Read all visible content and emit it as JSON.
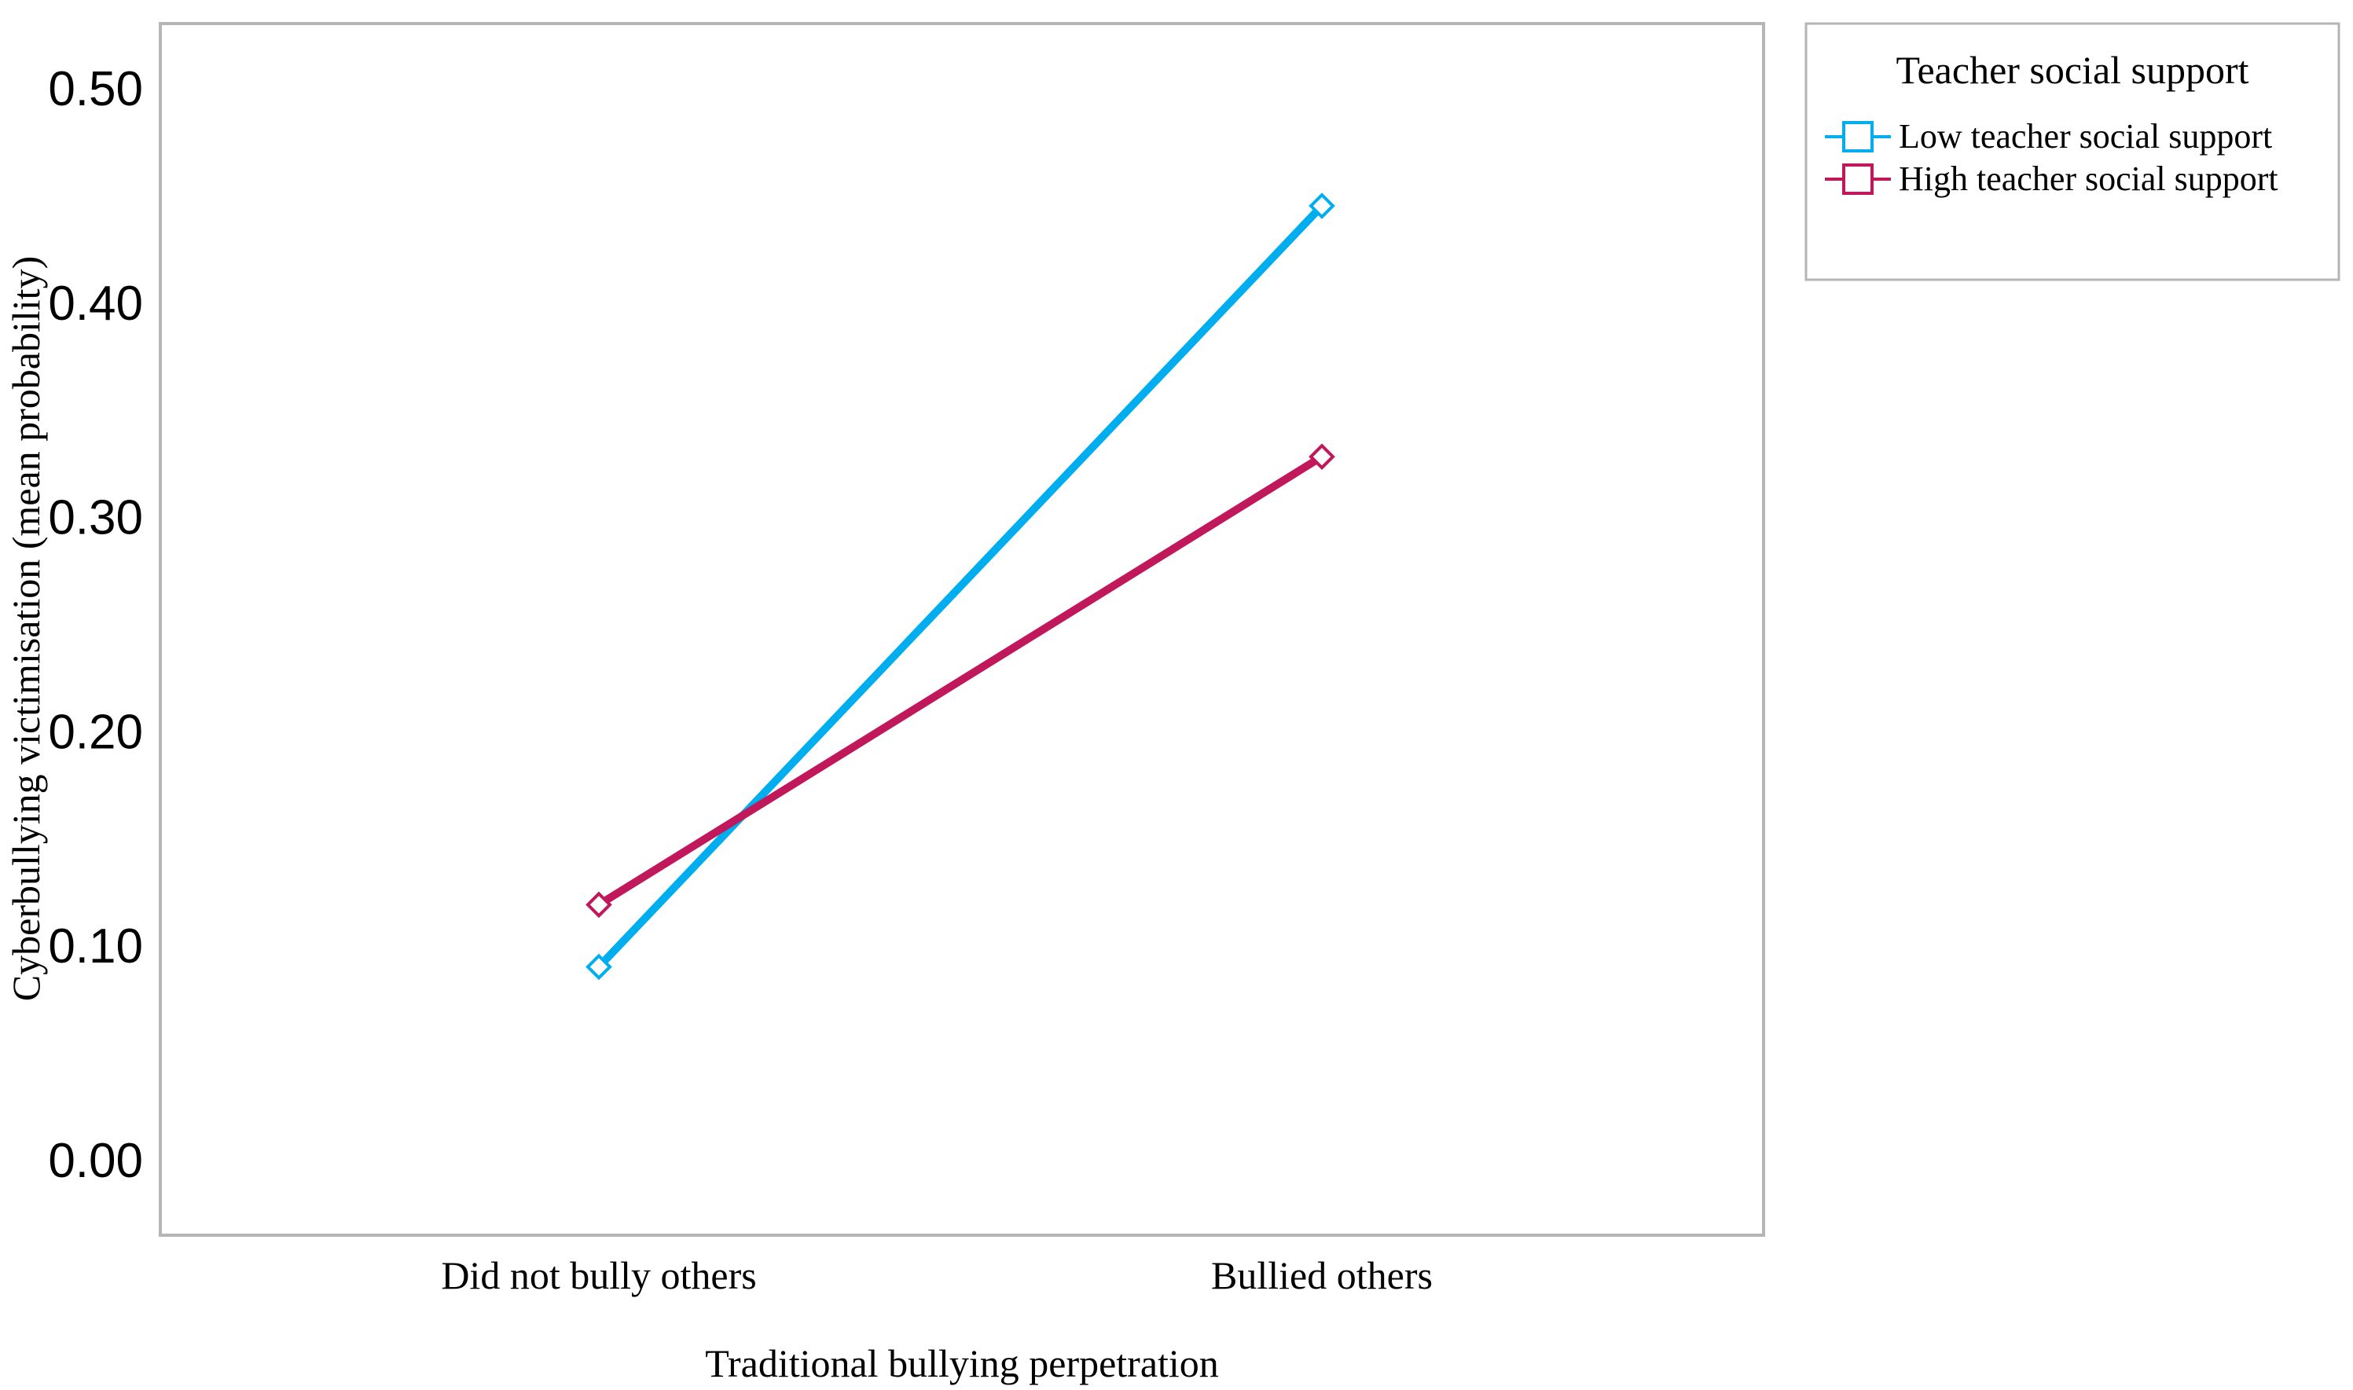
{
  "chart_data": {
    "type": "line",
    "categories": [
      "Did not bully others",
      "Bullied others"
    ],
    "xlabel": "Traditional bullying perpetration",
    "ylabel": "Cyberbullying victimisation (mean probability)",
    "ylim": [
      0,
      0.5
    ],
    "yticks": [
      "0.00",
      "0.10",
      "0.20",
      "0.30",
      "0.40",
      "0.50"
    ],
    "grid": false,
    "legend": {
      "title": "Teacher social support",
      "placement": "outside-right-top"
    },
    "series": [
      {
        "name": "Low teacher social support",
        "color": "#00aef0",
        "marker": "diamond",
        "values": [
          0.09,
          0.445
        ]
      },
      {
        "name": "High teacher social support",
        "color": "#c0185a",
        "marker": "diamond",
        "values": [
          0.119,
          0.328
        ]
      }
    ]
  }
}
